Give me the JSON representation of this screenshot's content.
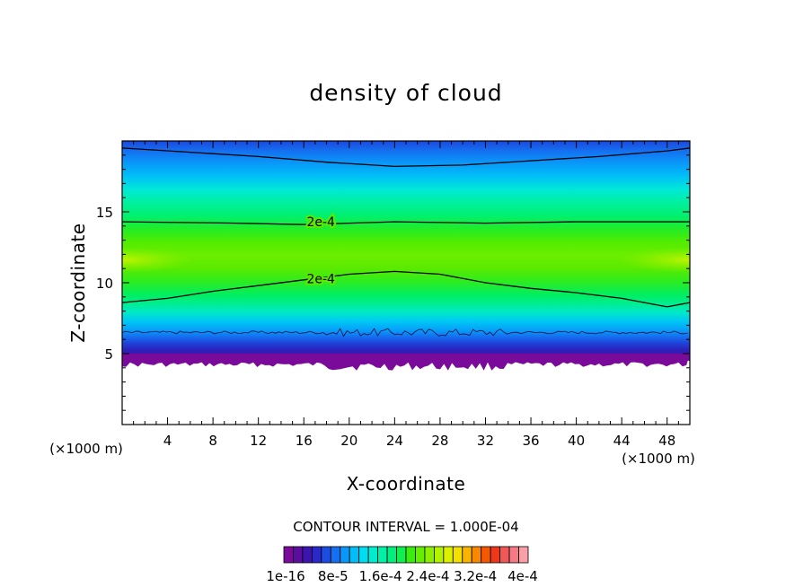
{
  "chart_data": {
    "type": "heatmap",
    "title": "density of cloud",
    "xlabel": "X-coordinate",
    "ylabel": "Z-coordinate",
    "x_unit": "(×1000 m)",
    "xlim": [
      0,
      50
    ],
    "ylim": [
      0,
      20
    ],
    "xticks": [
      "4",
      "8",
      "12",
      "16",
      "20",
      "24",
      "28",
      "32",
      "36",
      "40",
      "44",
      "48"
    ],
    "yticks": [
      "5",
      "10",
      "15"
    ],
    "contour_interval_label": "CONTOUR INTERVAL = 1.000E-04",
    "contour_labels": [
      {
        "text": "2e-4",
        "x": 17.5,
        "z": 14.3
      },
      {
        "text": "2e-4",
        "x": 17.5,
        "z": 10.3
      }
    ],
    "contour_lines": [
      {
        "level": "2e-4",
        "points": [
          [
            0,
            14.3
          ],
          [
            10,
            14.2
          ],
          [
            16,
            14.1
          ],
          [
            24,
            14.3
          ],
          [
            32,
            14.2
          ],
          [
            40,
            14.3
          ],
          [
            50,
            14.3
          ]
        ]
      },
      {
        "level": "2e-4",
        "points": [
          [
            0,
            8.6
          ],
          [
            4,
            8.9
          ],
          [
            8,
            9.4
          ],
          [
            12,
            9.8
          ],
          [
            16,
            10.2
          ],
          [
            20,
            10.6
          ],
          [
            24,
            10.8
          ],
          [
            28,
            10.6
          ],
          [
            32,
            10.0
          ],
          [
            36,
            9.6
          ],
          [
            40,
            9.3
          ],
          [
            44,
            8.9
          ],
          [
            48,
            8.3
          ],
          [
            50,
            8.6
          ]
        ]
      },
      {
        "level": "1e-4",
        "points": [
          [
            0,
            19.5
          ],
          [
            6,
            19.2
          ],
          [
            12,
            18.9
          ],
          [
            18,
            18.5
          ],
          [
            24,
            18.2
          ],
          [
            30,
            18.3
          ],
          [
            36,
            18.6
          ],
          [
            42,
            18.9
          ],
          [
            48,
            19.3
          ],
          [
            50,
            19.5
          ]
        ]
      }
    ],
    "field": {
      "description": "cloud density vs X and Z",
      "max_value": "4e-4",
      "cloud_base_z": 4.5,
      "cloud_top_z": 20
    },
    "colorbar": {
      "tick_labels": [
        "1e-16",
        "8e-5",
        "1.6e-4",
        "2.4e-4",
        "3.2e-4",
        "4e-4"
      ],
      "colors": [
        "#7a0a9a",
        "#5a0d9e",
        "#3c14b0",
        "#2a28c8",
        "#1c4ce0",
        "#1470f0",
        "#0a98f8",
        "#00bff8",
        "#00dcf0",
        "#00ecd0",
        "#00f0a8",
        "#00f080",
        "#10ee50",
        "#3aec10",
        "#64ee00",
        "#8cf000",
        "#b4f200",
        "#dcf000",
        "#f4e000",
        "#f8b400",
        "#f88800",
        "#f45800",
        "#ec3818",
        "#f05858",
        "#f47a86",
        "#f8a0a8"
      ]
    }
  }
}
